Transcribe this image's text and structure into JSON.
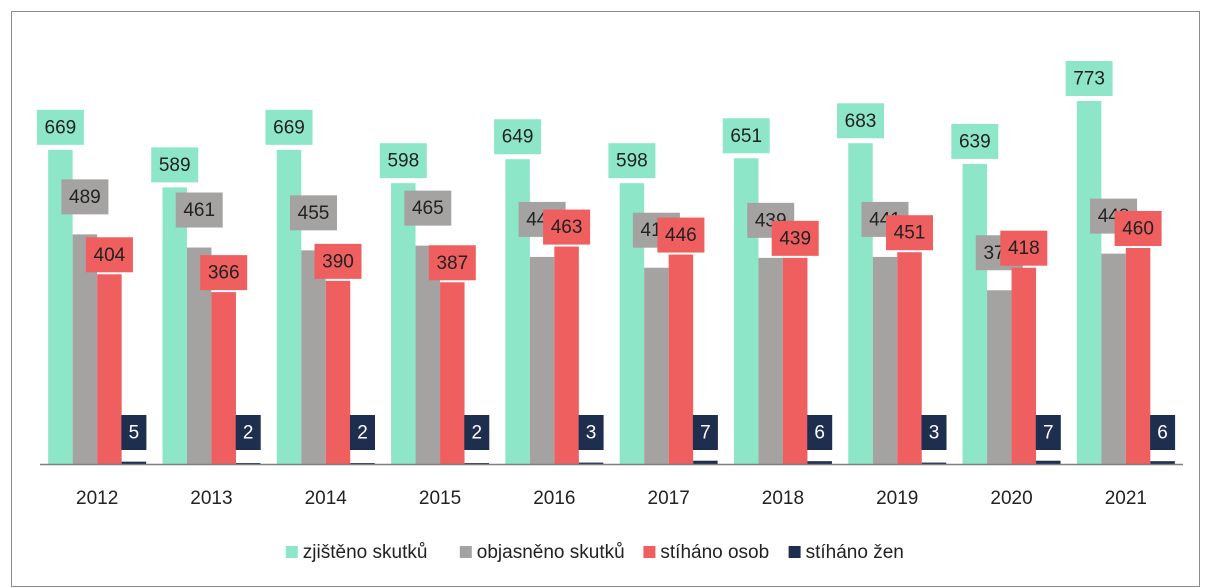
{
  "chart_data": {
    "type": "bar",
    "categories": [
      "2012",
      "2013",
      "2014",
      "2015",
      "2016",
      "2017",
      "2018",
      "2019",
      "2020",
      "2021"
    ],
    "series": [
      {
        "name": "zjištěno skutků",
        "color": "#8ee6c9",
        "values": [
          669,
          589,
          669,
          598,
          649,
          598,
          651,
          683,
          639,
          773
        ]
      },
      {
        "name": "objasněno skutků",
        "color": "#a5a2a2",
        "values": [
          489,
          461,
          455,
          465,
          441,
          418,
          439,
          441,
          370,
          448
        ]
      },
      {
        "name": "stíháno osob",
        "color": "#ef5f5f",
        "values": [
          404,
          366,
          390,
          387,
          463,
          446,
          439,
          451,
          418,
          460
        ]
      },
      {
        "name": "stíháno žen",
        "color": "#1e2e4f",
        "values": [
          5,
          2,
          2,
          2,
          3,
          7,
          6,
          3,
          7,
          6
        ]
      }
    ],
    "legend": "bottom"
  }
}
